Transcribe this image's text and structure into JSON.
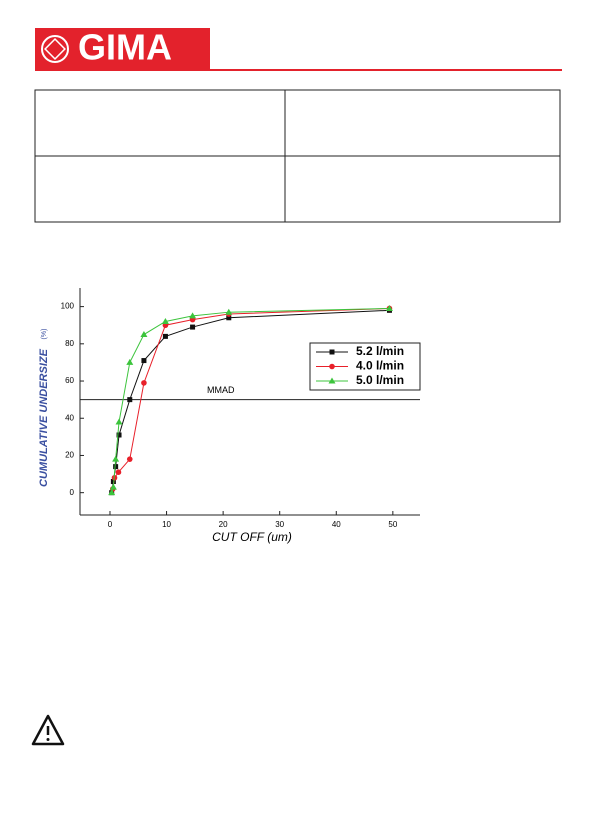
{
  "header": {
    "logo": "GIMA"
  },
  "chart_data": {
    "type": "scatter",
    "y_label": "CUMULATIVE UNDERSIZE",
    "y_unit": "(%)",
    "x_label": "CUT OFF (um)",
    "reference_line": {
      "label": "MMAD",
      "value": 50
    },
    "xlim": [
      -5.3,
      54.8
    ],
    "ylim": [
      -12,
      110
    ],
    "xticks": [
      0,
      10,
      20,
      30,
      40,
      50
    ],
    "yticks": [
      0,
      20,
      40,
      60,
      80,
      100
    ],
    "legend": "right",
    "lines": true,
    "series": [
      {
        "name": "5.2 l/min",
        "color": "#111111",
        "marker": "square",
        "x": [
          0.3,
          0.6,
          1,
          1.6,
          3.5,
          6,
          9.8,
          14.6,
          21,
          49.4
        ],
        "values": [
          0,
          6,
          14,
          31,
          50,
          71,
          84,
          89,
          94,
          98
        ]
      },
      {
        "name": "4.0 l/min",
        "color": "#e8202a",
        "marker": "circle",
        "x": [
          0.5,
          0.8,
          1.5,
          3.5,
          6,
          9.8,
          14.6,
          21,
          49.4
        ],
        "values": [
          2,
          8,
          11,
          18,
          59,
          90,
          93,
          96,
          99
        ]
      },
      {
        "name": "5.0 l/min",
        "color": "#3cc43c",
        "marker": "triangle",
        "x": [
          0.3,
          0.6,
          1,
          1.6,
          3.5,
          6,
          9.8,
          14.6,
          21,
          49.4
        ],
        "values": [
          0,
          3,
          18,
          38,
          70,
          85,
          92,
          95,
          97,
          99
        ]
      }
    ]
  }
}
